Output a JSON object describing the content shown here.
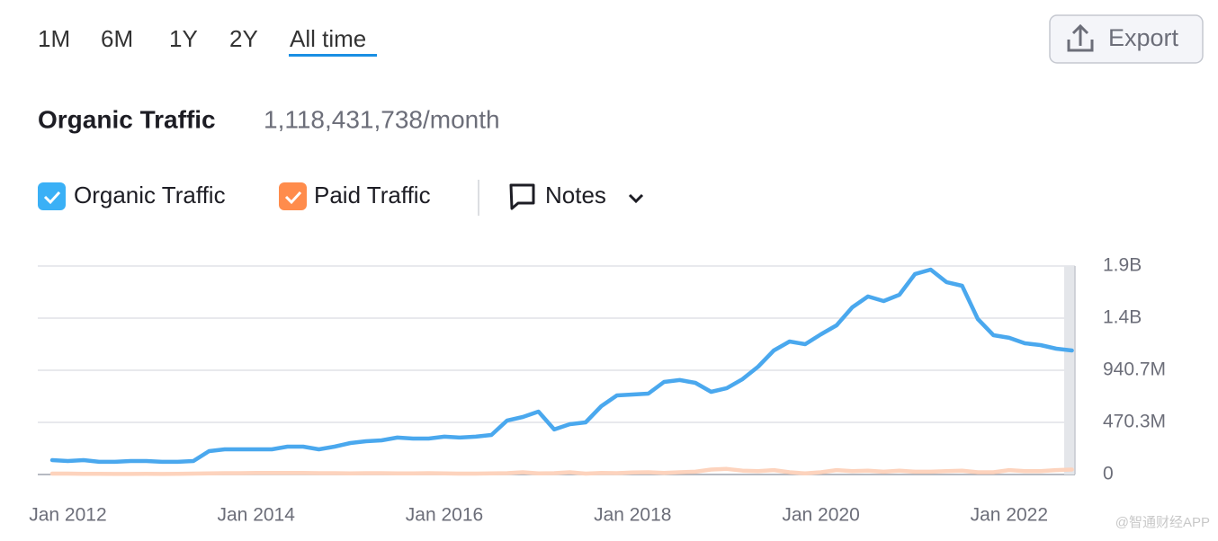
{
  "ui": {
    "periods": [
      "1M",
      "6M",
      "1Y",
      "2Y",
      "All time"
    ],
    "export": "Export",
    "heading": "Organic Traffic",
    "heading_value": "1,118,431,738/month",
    "notes": "Notes",
    "watermark": "@智通财经APP"
  },
  "chart_data": {
    "type": "line",
    "x": [
      "Nov 2011",
      "Jan 2012",
      "Mar 2012",
      "May 2012",
      "Jul 2012",
      "Sep 2012",
      "Nov 2012",
      "Jan 2013",
      "Mar 2013",
      "May 2013",
      "Jul 2013",
      "Sep 2013",
      "Nov 2013",
      "Jan 2014",
      "Mar 2014",
      "May 2014",
      "Jul 2014",
      "Sep 2014",
      "Nov 2014",
      "Jan 2015",
      "Mar 2015",
      "May 2015",
      "Jul 2015",
      "Sep 2015",
      "Nov 2015",
      "Jan 2016",
      "Mar 2016",
      "May 2016",
      "Jul 2016",
      "Sep 2016",
      "Nov 2016",
      "Jan 2017",
      "Mar 2017",
      "May 2017",
      "Jul 2017",
      "Sep 2017",
      "Nov 2017",
      "Jan 2018",
      "Mar 2018",
      "May 2018",
      "Jul 2018",
      "Sep 2018",
      "Nov 2018",
      "Jan 2019",
      "Mar 2019",
      "May 2019",
      "Jul 2019",
      "Sep 2019",
      "Nov 2019",
      "Jan 2020",
      "Mar 2020",
      "May 2020",
      "Jul 2020",
      "Sep 2020",
      "Nov 2020",
      "Jan 2021",
      "Mar 2021",
      "May 2021",
      "Jul 2021",
      "Sep 2021",
      "Nov 2021",
      "Jan 2022",
      "Mar 2022",
      "May 2022",
      "Jul 2022",
      "Sep 2022"
    ],
    "series": [
      {
        "name": "Organic Traffic",
        "color": "#4aa8ee",
        "values": [
          130000000,
          122000000,
          130000000,
          114000000,
          114000000,
          122000000,
          122000000,
          114000000,
          114000000,
          122000000,
          211000000,
          227000000,
          227000000,
          227000000,
          227000000,
          251000000,
          251000000,
          227000000,
          251000000,
          284000000,
          300000000,
          308000000,
          333000000,
          324000000,
          324000000,
          341000000,
          333000000,
          341000000,
          357000000,
          487000000,
          519000000,
          568000000,
          406000000,
          454000000,
          470000000,
          616000000,
          714000000,
          722000000,
          730000000,
          835000000,
          852000000,
          827000000,
          746000000,
          779000000,
          860000000,
          973000000,
          1119000000,
          1200000000,
          1176000000,
          1265000000,
          1346000000,
          1508000000,
          1606000000,
          1565000000,
          1622000000,
          1809000000,
          1849000000,
          1736000000,
          1703000000,
          1403000000,
          1257000000,
          1233000000,
          1184000000,
          1168000000,
          1135000000,
          1119000000
        ]
      },
      {
        "name": "Paid Traffic",
        "color": "#fdd3bd",
        "values": [
          8000000,
          8000000,
          6000000,
          6000000,
          5000000,
          5000000,
          6000000,
          5000000,
          6000000,
          8000000,
          10000000,
          12000000,
          12000000,
          14000000,
          14000000,
          15000000,
          15000000,
          12000000,
          12000000,
          10000000,
          12000000,
          12000000,
          10000000,
          10000000,
          12000000,
          10000000,
          8000000,
          8000000,
          10000000,
          12000000,
          20000000,
          10000000,
          12000000,
          20000000,
          8000000,
          15000000,
          12000000,
          18000000,
          20000000,
          14000000,
          20000000,
          25000000,
          45000000,
          50000000,
          35000000,
          30000000,
          40000000,
          20000000,
          10000000,
          20000000,
          40000000,
          30000000,
          35000000,
          25000000,
          35000000,
          25000000,
          25000000,
          30000000,
          35000000,
          20000000,
          20000000,
          40000000,
          30000000,
          30000000,
          40000000,
          45000000
        ]
      }
    ],
    "xticks": [
      "Jan 2012",
      "Jan 2014",
      "Jan 2016",
      "Jan 2018",
      "Jan 2020",
      "Jan 2022"
    ],
    "ylim": [
      0,
      1881300000
    ],
    "yticks": [
      0,
      {
        "value": 470300000,
        "label": "470.3M"
      },
      {
        "value": 940700000,
        "label": "940.7M"
      },
      {
        "value": 1411000000,
        "label": "1.4B"
      },
      {
        "value": 1881300000,
        "label": "1.9B"
      }
    ],
    "grid": true
  }
}
